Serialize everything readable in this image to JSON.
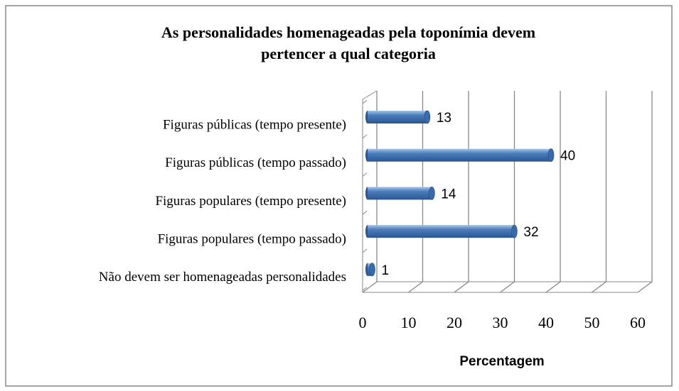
{
  "chart_data": {
    "type": "bar",
    "orientation": "horizontal",
    "title": "As personalidades homenageadas pela toponímia devem pertencer a qual categoria",
    "x_label": "Percentagem",
    "categories": [
      "Figuras públicas (tempo presente)",
      "Figuras públicas (tempo passado)",
      "Figuras populares (tempo presente)",
      "Figuras populares (tempo passado)",
      "Não devem ser homenageadas personalidades"
    ],
    "values": [
      13,
      40,
      14,
      32,
      1
    ],
    "color": "#4a7ebb",
    "xlim": [
      0,
      60
    ],
    "xticks": [
      0,
      10,
      20,
      30,
      40,
      50,
      60
    ],
    "grid": true
  }
}
